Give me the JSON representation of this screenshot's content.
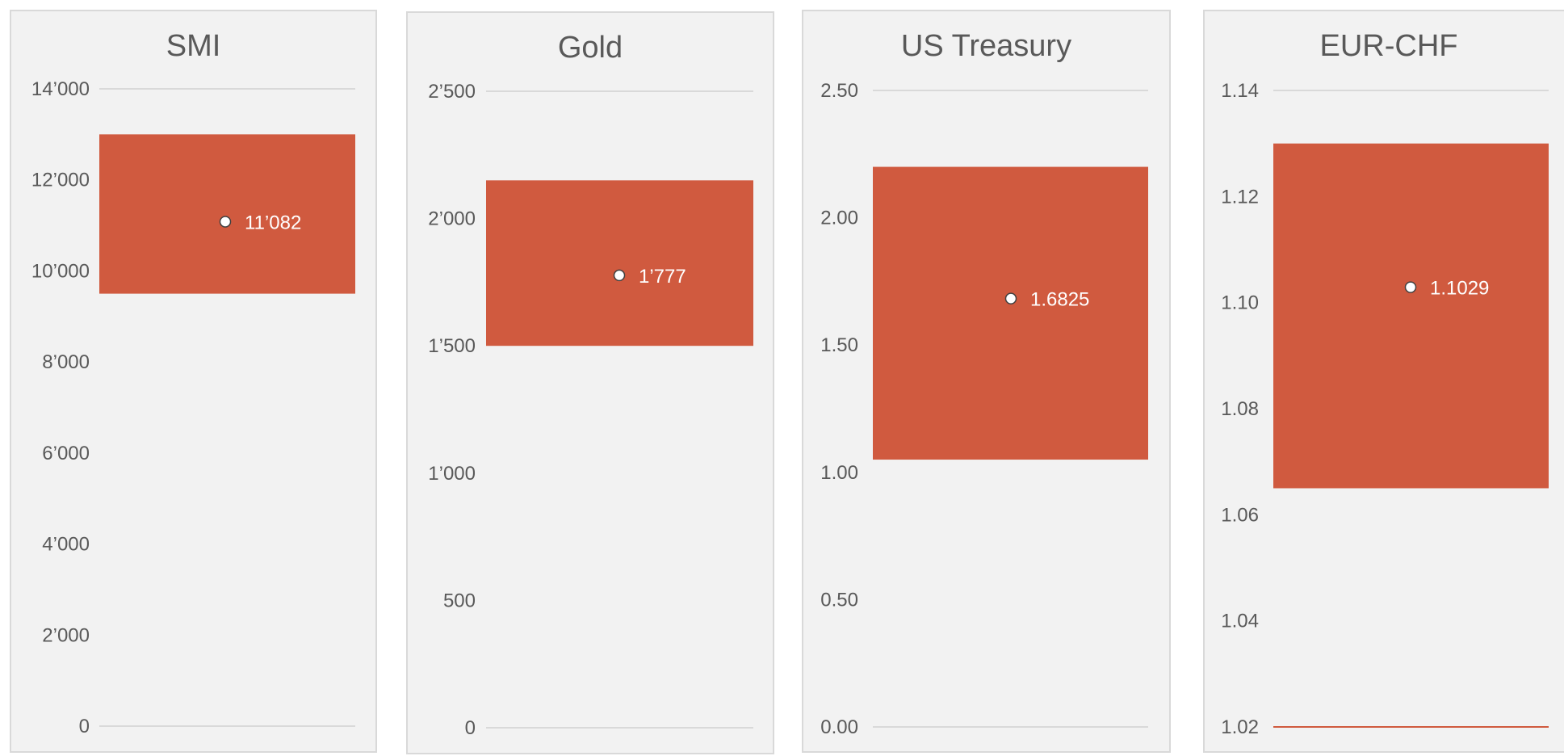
{
  "colors": {
    "bar": "#d05a3f",
    "marker_fill": "#ffffff",
    "marker_stroke": "#404040",
    "grid": "#d9d9d9",
    "panel_bg": "#f2f2f2",
    "text": "#595959"
  },
  "chart_data": [
    {
      "type": "bar",
      "title": "SMI",
      "ylim": [
        0,
        14000
      ],
      "yticks": [
        "0",
        "2’000",
        "4’000",
        "6’000",
        "8’000",
        "10’000",
        "12’000",
        "14’000"
      ],
      "range": [
        9500,
        13000
      ],
      "value": 11082,
      "value_label": "11’082"
    },
    {
      "type": "bar",
      "title": "Gold",
      "ylim": [
        0,
        2500
      ],
      "yticks": [
        "0",
        "500",
        "1’000",
        "1’500",
        "2’000",
        "2’500"
      ],
      "range": [
        1500,
        2150
      ],
      "value": 1777,
      "value_label": "1’777"
    },
    {
      "type": "bar",
      "title": "US Treasury",
      "ylim": [
        0,
        2.5
      ],
      "yticks": [
        "0.00",
        "0.50",
        "1.00",
        "1.50",
        "2.00",
        "2.50"
      ],
      "range": [
        1.05,
        2.2
      ],
      "value": 1.6825,
      "value_label": "1.6825"
    },
    {
      "type": "bar",
      "title": "EUR-CHF",
      "ylim": [
        1.02,
        1.14
      ],
      "yticks": [
        "1.02",
        "1.04",
        "1.06",
        "1.08",
        "1.10",
        "1.12",
        "1.14"
      ],
      "range": [
        1.065,
        1.13
      ],
      "value": 1.1029,
      "value_label": "1.1029"
    }
  ]
}
